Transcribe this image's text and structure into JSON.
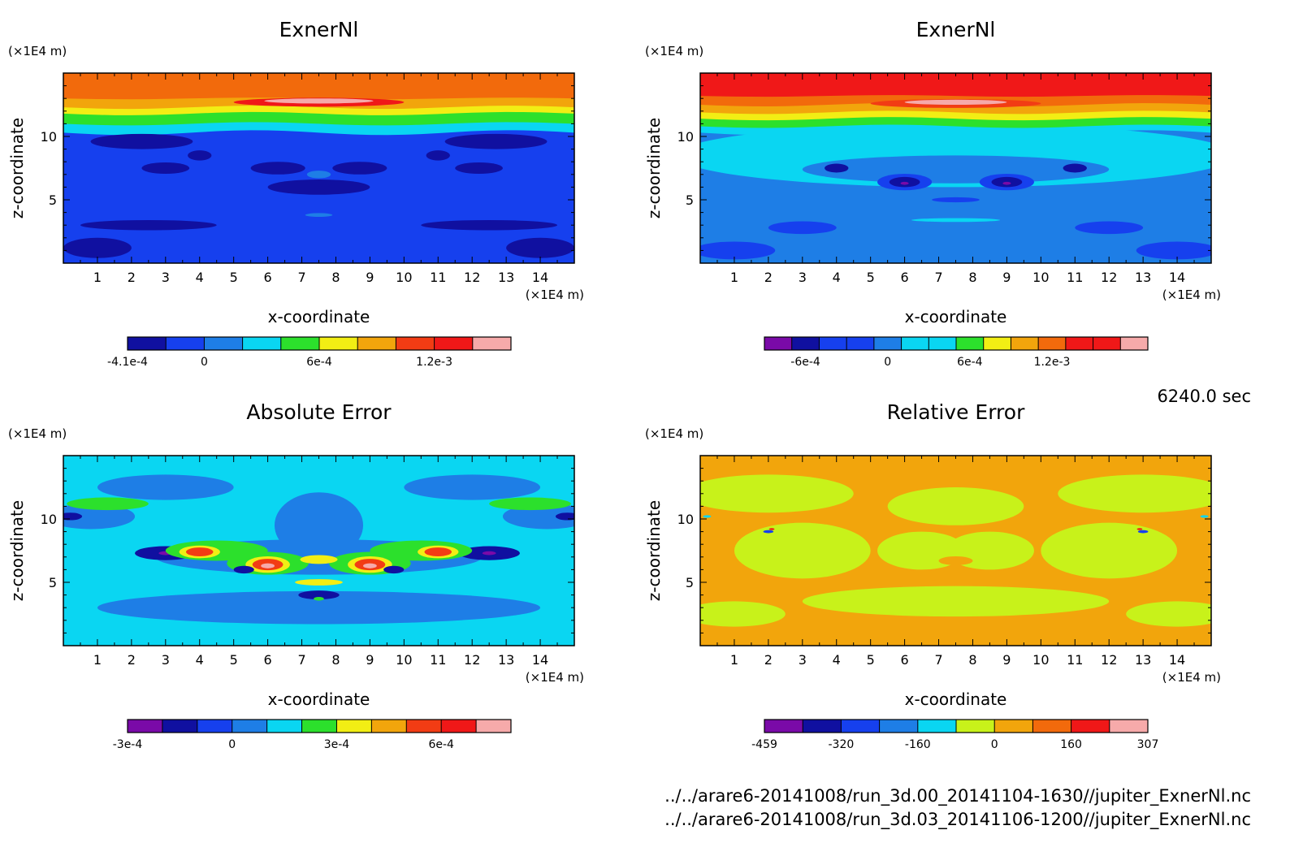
{
  "colors": {
    "purple": "#7a0aa8",
    "navy": "#1010a0",
    "blue": "#1640ee",
    "mid_blue": "#1e7ee6",
    "cyan": "#0ad6f2",
    "green": "#2ce02c",
    "lime": "#c8f21a",
    "yellow": "#f2ee14",
    "orange": "#f2a50c",
    "dark_orange": "#f26a0c",
    "red_orange": "#f23c14",
    "red": "#f01818",
    "pink": "#f6aaaa"
  },
  "chart_data": [
    {
      "type": "heatmap",
      "title": "ExnerNl",
      "xlabel": "x-coordinate",
      "ylabel": "z-coordinate",
      "x_unit": "(×1E4 m)",
      "y_unit": "(×1E4 m)",
      "xlim": [
        0,
        15
      ],
      "ylim": [
        0,
        15
      ],
      "x_ticks": [
        1,
        2,
        3,
        4,
        5,
        6,
        7,
        8,
        9,
        10,
        11,
        12,
        13,
        14
      ],
      "y_ticks": [
        5,
        10
      ],
      "levels": [
        -0.00041,
        -0.0002,
        0,
        0.0002,
        0.0004,
        0.0006,
        0.0008,
        0.001,
        0.0012,
        0.0014
      ],
      "colorbar": {
        "colors": [
          "navy",
          "blue",
          "mid_blue",
          "cyan",
          "green",
          "yellow",
          "orange",
          "red_orange",
          "red",
          "pink"
        ],
        "tick_labels": [
          {
            "label": "-4.1e-4",
            "at": 0
          },
          {
            "label": "0",
            "at": 2
          },
          {
            "label": "6e-4",
            "at": 5
          },
          {
            "label": "1.2e-3",
            "at": 8
          }
        ]
      },
      "features": [
        {
          "x": 3.0,
          "z": 7.5,
          "value": -0.0004
        },
        {
          "x": 4.0,
          "z": 8.5,
          "value": -0.0003
        },
        {
          "x": 7.5,
          "z": 6.5,
          "value": -0.0003
        },
        {
          "x": 11.0,
          "z": 8.5,
          "value": -0.0003
        },
        {
          "x": 12.5,
          "z": 7.5,
          "value": -0.0004
        },
        {
          "x": 7.5,
          "z": 13.0,
          "value": 0.0014
        }
      ]
    },
    {
      "type": "heatmap",
      "title": "ExnerNl",
      "xlabel": "x-coordinate",
      "ylabel": "z-coordinate",
      "x_unit": "(×1E4 m)",
      "y_unit": "(×1E4 m)",
      "xlim": [
        0,
        15
      ],
      "ylim": [
        0,
        15
      ],
      "x_ticks": [
        1,
        2,
        3,
        4,
        5,
        6,
        7,
        8,
        9,
        10,
        11,
        12,
        13,
        14
      ],
      "y_ticks": [
        5,
        10
      ],
      "levels": [
        -0.0009,
        -0.0008,
        -0.0006,
        -0.0004,
        -0.0002,
        0,
        0.0002,
        0.0004,
        0.0006,
        0.0008,
        0.001,
        0.0012,
        0.0014
      ],
      "colorbar": {
        "colors": [
          "purple",
          "navy",
          "blue",
          "blue",
          "mid_blue",
          "cyan",
          "cyan",
          "green",
          "yellow",
          "orange",
          "dark_orange",
          "red",
          "red",
          "pink"
        ],
        "tick_labels": [
          {
            "label": "-6e-4",
            "at": 1.5
          },
          {
            "label": "0",
            "at": 4.5
          },
          {
            "label": "6e-4",
            "at": 7.5
          },
          {
            "label": "1.2e-3",
            "at": 10.5
          }
        ]
      },
      "features": [
        {
          "x": 6.0,
          "z": 6.3,
          "value": -0.0009
        },
        {
          "x": 9.0,
          "z": 6.3,
          "value": -0.0009
        },
        {
          "x": 4.0,
          "z": 7.5,
          "value": -0.0004
        },
        {
          "x": 11.0,
          "z": 7.5,
          "value": -0.0004
        },
        {
          "x": 7.5,
          "z": 12.5,
          "value": 0.0014
        }
      ],
      "time_label": "6240.0 sec"
    },
    {
      "type": "heatmap",
      "title": "Absolute Error",
      "xlabel": "x-coordinate",
      "ylabel": "z-coordinate",
      "x_unit": "(×1E4 m)",
      "y_unit": "(×1E4 m)",
      "xlim": [
        0,
        15
      ],
      "ylim": [
        0,
        15
      ],
      "x_ticks": [
        1,
        2,
        3,
        4,
        5,
        6,
        7,
        8,
        9,
        10,
        11,
        12,
        13,
        14
      ],
      "y_ticks": [
        5,
        10
      ],
      "levels": [
        -0.0003,
        -0.0002,
        -0.0001,
        0,
        0.0001,
        0.0002,
        0.0003,
        0.0004,
        0.0005,
        0.0006,
        0.0007
      ],
      "colorbar": {
        "colors": [
          "purple",
          "navy",
          "blue",
          "mid_blue",
          "cyan",
          "green",
          "yellow",
          "orange",
          "red_orange",
          "red",
          "pink"
        ],
        "tick_labels": [
          {
            "label": "-3e-4",
            "at": 0
          },
          {
            "label": "0",
            "at": 3
          },
          {
            "label": "3e-4",
            "at": 6
          },
          {
            "label": "6e-4",
            "at": 9
          }
        ]
      },
      "features": [
        {
          "x": 4.0,
          "z": 7.3,
          "value": 0.0004
        },
        {
          "x": 6.0,
          "z": 6.3,
          "value": 0.0006
        },
        {
          "x": 9.0,
          "z": 6.3,
          "value": 0.0006
        },
        {
          "x": 11.0,
          "z": 7.3,
          "value": 0.0004
        },
        {
          "x": 3.0,
          "z": 7.3,
          "value": -0.0003
        },
        {
          "x": 12.5,
          "z": 7.3,
          "value": -0.0003
        },
        {
          "x": 7.5,
          "z": 6.8,
          "value": 0.0002
        }
      ]
    },
    {
      "type": "heatmap",
      "title": "Relative Error",
      "xlabel": "x-coordinate",
      "ylabel": "z-coordinate",
      "x_unit": "(×1E4 m)",
      "y_unit": "(×1E4 m)",
      "xlim": [
        0,
        15
      ],
      "ylim": [
        0,
        15
      ],
      "x_ticks": [
        1,
        2,
        3,
        4,
        5,
        6,
        7,
        8,
        9,
        10,
        11,
        12,
        13,
        14
      ],
      "y_ticks": [
        5,
        10
      ],
      "levels": [
        -459,
        -400,
        -320,
        -240,
        -160,
        -80,
        0,
        80,
        160,
        240,
        307
      ],
      "colorbar": {
        "colors": [
          "purple",
          "navy",
          "blue",
          "mid_blue",
          "cyan",
          "lime",
          "orange",
          "dark_orange",
          "red",
          "pink"
        ],
        "tick_labels": [
          {
            "label": "-459",
            "at": 0
          },
          {
            "label": "-320",
            "at": 2
          },
          {
            "label": "-160",
            "at": 4
          },
          {
            "label": "0",
            "at": 6
          },
          {
            "label": "160",
            "at": 8
          },
          {
            "label": "307",
            "at": 10
          }
        ]
      },
      "features": [
        {
          "x": 2.0,
          "z": 9.0,
          "value": -300
        },
        {
          "x": 13.0,
          "z": 9.0,
          "value": -300
        },
        {
          "x": 0.3,
          "z": 10.2,
          "value": -100
        },
        {
          "x": 14.7,
          "z": 10.2,
          "value": -100
        }
      ]
    }
  ],
  "footer": {
    "file1": "../../arare6-20141008/run_3d.00_20141104-1630//jupiter_ExnerNl.nc",
    "file2": "../../arare6-20141008/run_3d.03_20141106-1200//jupiter_ExnerNl.nc"
  }
}
